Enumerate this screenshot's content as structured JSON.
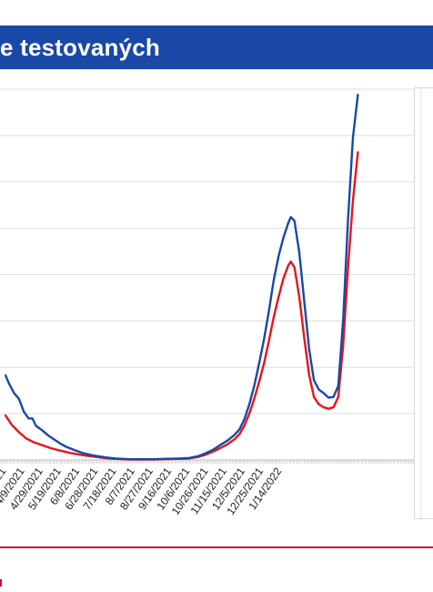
{
  "header": {
    "title": "e testovaných"
  },
  "colors": {
    "title_bar": "#1948a6",
    "series_blue": "#1948a6",
    "series_red": "#e8141b",
    "grid": "#dddddd",
    "rule": "#c8102e"
  },
  "chart_data": {
    "type": "line",
    "title": "",
    "xlabel": "",
    "ylabel": "",
    "grid": true,
    "x_tick_labels": [
      "1/2021",
      "4/9/2021",
      "4/29/2021",
      "5/19/2021",
      "6/8/2021",
      "6/28/2021",
      "7/18/2021",
      "8/7/2021",
      "8/27/2021",
      "9/16/2021",
      "10/6/2021",
      "10/26/2021",
      "11/15/2021",
      "12/5/2021",
      "12/25/2021",
      "1/14/2022"
    ],
    "gridline_count": 8,
    "series": [
      {
        "color": "#1948a6",
        "points": [
          [
            "3/30/2021",
            0.228
          ],
          [
            "4/2/2021",
            0.205
          ],
          [
            "4/6/2021",
            0.18
          ],
          [
            "4/10/2021",
            0.165
          ],
          [
            "4/14/2021",
            0.13
          ],
          [
            "4/18/2021",
            0.112
          ],
          [
            "4/21/2021",
            0.112
          ],
          [
            "4/24/2021",
            0.092
          ],
          [
            "4/29/2021",
            0.08
          ],
          [
            "5/4/2021",
            0.066
          ],
          [
            "5/9/2021",
            0.055
          ],
          [
            "5/14/2021",
            0.044
          ],
          [
            "5/19/2021",
            0.035
          ],
          [
            "5/26/2021",
            0.026
          ],
          [
            "6/2/2021",
            0.018
          ],
          [
            "6/10/2021",
            0.012
          ],
          [
            "6/20/2021",
            0.007
          ],
          [
            "6/28/2021",
            0.004
          ],
          [
            "7/10/2021",
            0.002
          ],
          [
            "7/18/2021",
            0.002
          ],
          [
            "7/30/2021",
            0.002
          ],
          [
            "8/7/2021",
            0.003
          ],
          [
            "8/19/2021",
            0.004
          ],
          [
            "8/27/2021",
            0.005
          ],
          [
            "9/4/2021",
            0.01
          ],
          [
            "9/10/2021",
            0.018
          ],
          [
            "9/16/2021",
            0.027
          ],
          [
            "9/22/2021",
            0.04
          ],
          [
            "9/28/2021",
            0.052
          ],
          [
            "10/4/2021",
            0.068
          ],
          [
            "10/8/2021",
            0.083
          ],
          [
            "10/12/2021",
            0.11
          ],
          [
            "10/16/2021",
            0.15
          ],
          [
            "10/20/2021",
            0.2
          ],
          [
            "10/24/2021",
            0.26
          ],
          [
            "10/28/2021",
            0.325
          ],
          [
            "11/1/2021",
            0.4
          ],
          [
            "11/5/2021",
            0.485
          ],
          [
            "11/9/2021",
            0.55
          ],
          [
            "11/13/2021",
            0.6
          ],
          [
            "11/17/2021",
            0.64
          ],
          [
            "11/19/2021",
            0.655
          ],
          [
            "11/22/2021",
            0.645
          ],
          [
            "11/26/2021",
            0.56
          ],
          [
            "11/30/2021",
            0.43
          ],
          [
            "12/4/2021",
            0.3
          ],
          [
            "12/8/2021",
            0.215
          ],
          [
            "12/12/2021",
            0.19
          ],
          [
            "12/16/2021",
            0.18
          ],
          [
            "12/20/2021",
            0.168
          ],
          [
            "12/24/2021",
            0.17
          ],
          [
            "12/28/2021",
            0.2
          ],
          [
            "1/1/2022",
            0.38
          ],
          [
            "1/5/2022",
            0.65
          ],
          [
            "1/9/2022",
            0.87
          ],
          [
            "1/13/2022",
            0.985
          ]
        ]
      },
      {
        "color": "#e8141b",
        "points": [
          [
            "3/30/2021",
            0.12
          ],
          [
            "4/4/2021",
            0.095
          ],
          [
            "4/10/2021",
            0.075
          ],
          [
            "4/16/2021",
            0.058
          ],
          [
            "4/22/2021",
            0.048
          ],
          [
            "4/29/2021",
            0.04
          ],
          [
            "5/6/2021",
            0.032
          ],
          [
            "5/14/2021",
            0.025
          ],
          [
            "5/22/2021",
            0.019
          ],
          [
            "6/1/2021",
            0.013
          ],
          [
            "6/10/2021",
            0.009
          ],
          [
            "6/20/2021",
            0.005
          ],
          [
            "6/28/2021",
            0.003
          ],
          [
            "7/10/2021",
            0.001
          ],
          [
            "7/18/2021",
            0.001
          ],
          [
            "7/30/2021",
            0.001
          ],
          [
            "8/7/2021",
            0.002
          ],
          [
            "8/19/2021",
            0.003
          ],
          [
            "8/27/2021",
            0.004
          ],
          [
            "9/4/2021",
            0.008
          ],
          [
            "9/10/2021",
            0.014
          ],
          [
            "9/16/2021",
            0.022
          ],
          [
            "9/22/2021",
            0.032
          ],
          [
            "9/28/2021",
            0.042
          ],
          [
            "10/4/2021",
            0.056
          ],
          [
            "10/8/2021",
            0.07
          ],
          [
            "10/12/2021",
            0.093
          ],
          [
            "10/16/2021",
            0.125
          ],
          [
            "10/20/2021",
            0.165
          ],
          [
            "10/24/2021",
            0.21
          ],
          [
            "10/28/2021",
            0.26
          ],
          [
            "11/1/2021",
            0.32
          ],
          [
            "11/5/2021",
            0.385
          ],
          [
            "11/9/2021",
            0.44
          ],
          [
            "11/13/2021",
            0.49
          ],
          [
            "11/17/2021",
            0.525
          ],
          [
            "11/19/2021",
            0.535
          ],
          [
            "11/22/2021",
            0.52
          ],
          [
            "11/26/2021",
            0.44
          ],
          [
            "11/30/2021",
            0.33
          ],
          [
            "12/4/2021",
            0.23
          ],
          [
            "12/8/2021",
            0.17
          ],
          [
            "12/12/2021",
            0.15
          ],
          [
            "12/16/2021",
            0.142
          ],
          [
            "12/20/2021",
            0.138
          ],
          [
            "12/24/2021",
            0.142
          ],
          [
            "12/28/2021",
            0.17
          ],
          [
            "1/1/2022",
            0.31
          ],
          [
            "1/5/2022",
            0.52
          ],
          [
            "1/9/2022",
            0.7
          ],
          [
            "1/13/2022",
            0.83
          ]
        ]
      }
    ]
  }
}
